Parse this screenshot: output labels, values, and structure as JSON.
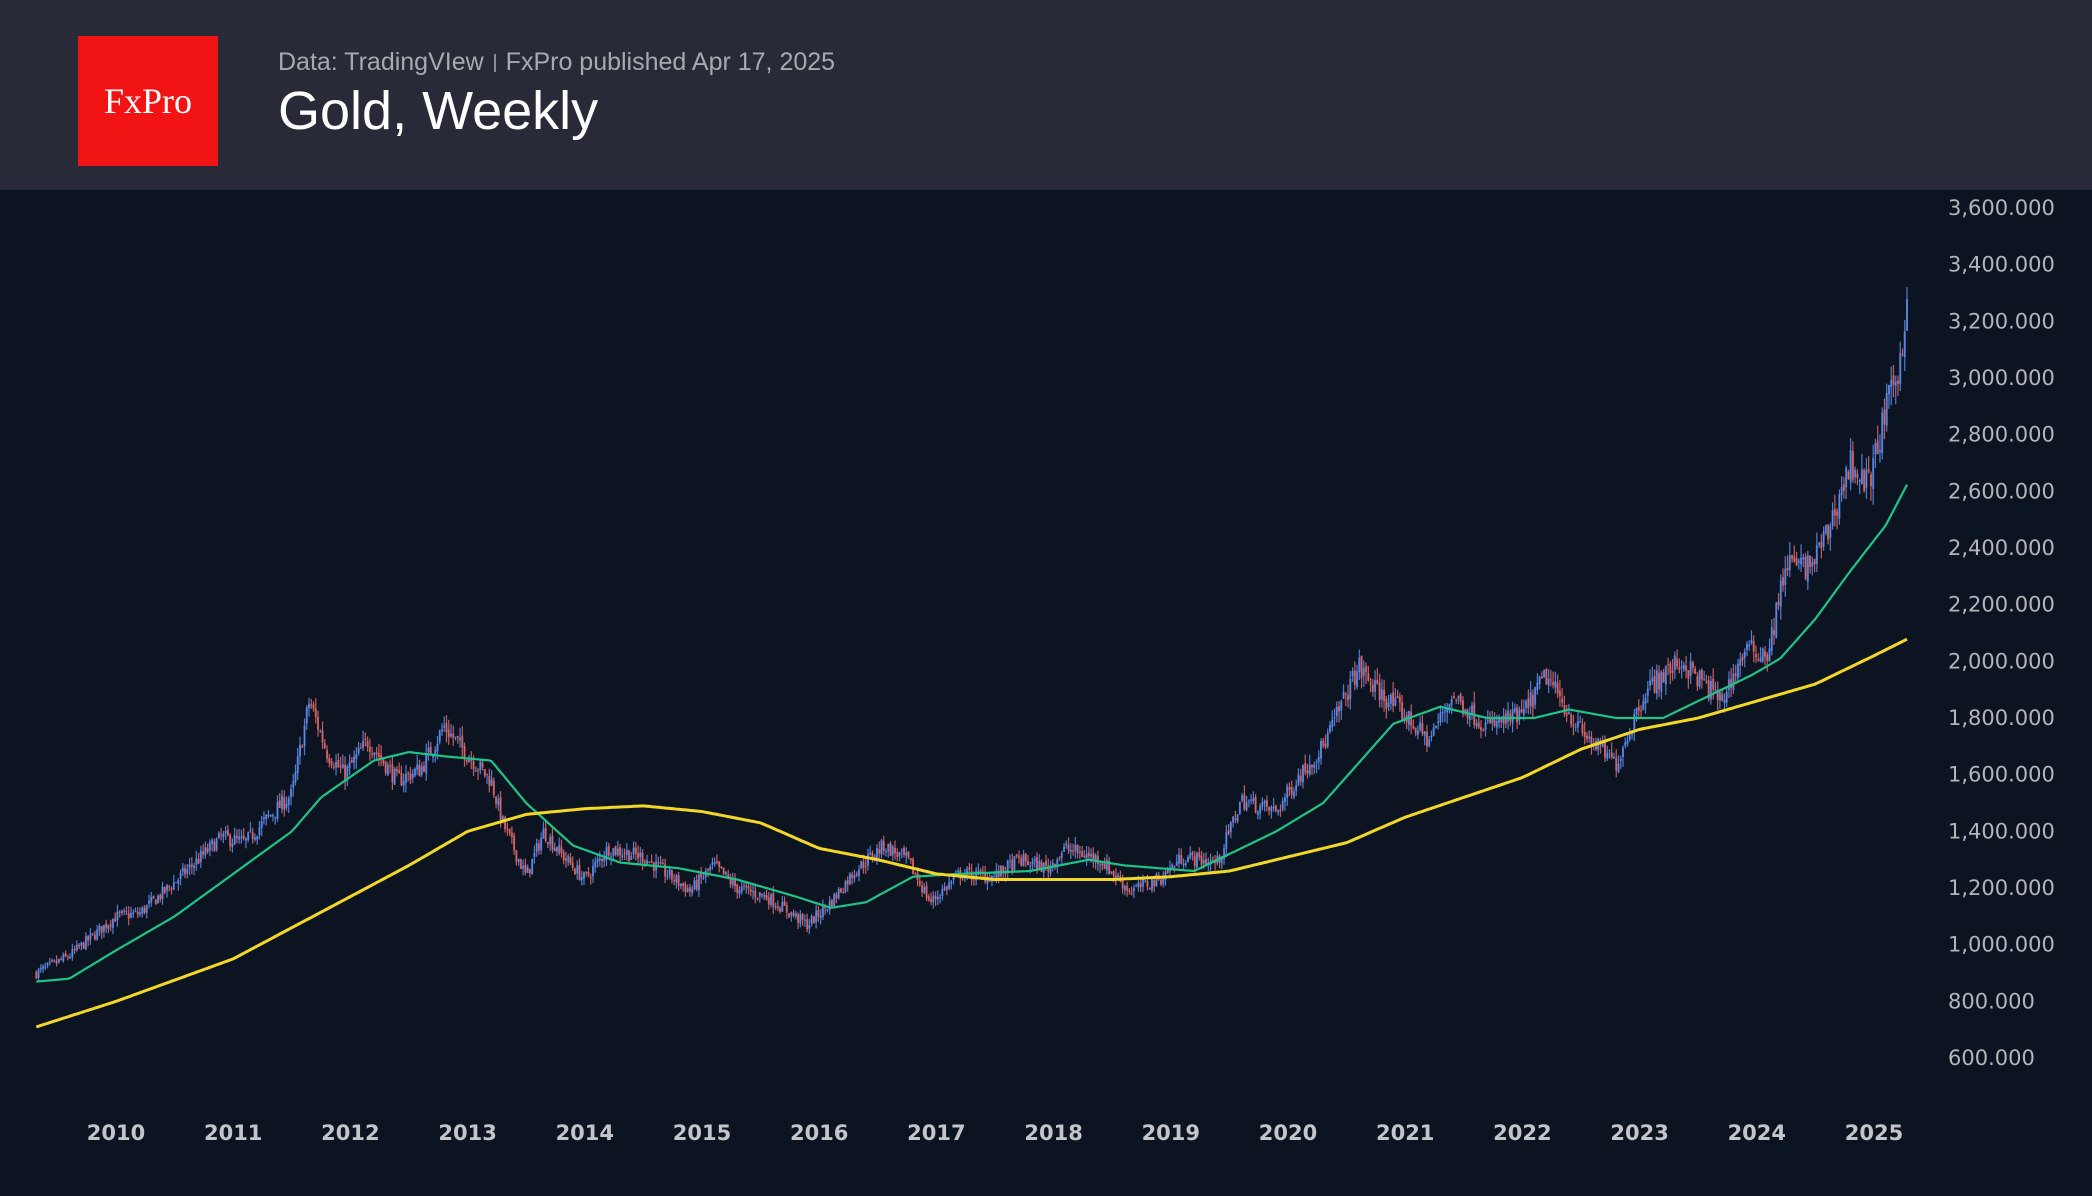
{
  "header": {
    "logo_text": "FxPro",
    "source": "Data: TradingVIew",
    "published": "FxPro published Apr 17, 2025",
    "title": "Gold, Weekly"
  },
  "colors": {
    "up": "#5f8ff0",
    "down": "#e26a6a",
    "ma_fast": "#1ec486",
    "ma_slow": "#f2d728",
    "background": "#0d1421",
    "header": "#282b37",
    "logo": "#f21414"
  },
  "chart_data": {
    "type": "candlestick",
    "title": "Gold, Weekly",
    "ylim": [
      600,
      3600
    ],
    "y_ticks": [
      "3,600.000",
      "3,400.000",
      "3,200.000",
      "3,000.000",
      "2,800.000",
      "2,600.000",
      "2,400.000",
      "2,200.000",
      "2,000.000",
      "1,800.000",
      "1,600.000",
      "1,400.000",
      "1,200.000",
      "1,000.000",
      "800.000",
      "600.000"
    ],
    "y_tick_values": [
      3600,
      3400,
      3200,
      3000,
      2800,
      2600,
      2400,
      2200,
      2000,
      1800,
      1600,
      1400,
      1200,
      1000,
      800,
      600
    ],
    "x_ticks": [
      "2010",
      "2011",
      "2012",
      "2013",
      "2014",
      "2015",
      "2016",
      "2017",
      "2018",
      "2019",
      "2020",
      "2021",
      "2022",
      "2023",
      "2024",
      "2025"
    ],
    "xlim": [
      2009.0,
      2025.9
    ],
    "price_path": [
      [
        2009.32,
        900
      ],
      [
        2009.6,
        960
      ],
      [
        2010.0,
        1100
      ],
      [
        2010.2,
        1110
      ],
      [
        2010.5,
        1220
      ],
      [
        2010.9,
        1380
      ],
      [
        2011.1,
        1360
      ],
      [
        2011.3,
        1450
      ],
      [
        2011.5,
        1530
      ],
      [
        2011.65,
        1860
      ],
      [
        2011.8,
        1680
      ],
      [
        2011.95,
        1600
      ],
      [
        2012.15,
        1720
      ],
      [
        2012.4,
        1580
      ],
      [
        2012.6,
        1620
      ],
      [
        2012.8,
        1770
      ],
      [
        2013.0,
        1670
      ],
      [
        2013.2,
        1580
      ],
      [
        2013.3,
        1430
      ],
      [
        2013.5,
        1240
      ],
      [
        2013.65,
        1400
      ],
      [
        2013.8,
        1320
      ],
      [
        2014.0,
        1230
      ],
      [
        2014.2,
        1340
      ],
      [
        2014.5,
        1310
      ],
      [
        2014.9,
        1190
      ],
      [
        2015.1,
        1280
      ],
      [
        2015.3,
        1200
      ],
      [
        2015.55,
        1170
      ],
      [
        2015.9,
        1070
      ],
      [
        2016.1,
        1150
      ],
      [
        2016.3,
        1260
      ],
      [
        2016.55,
        1350
      ],
      [
        2016.75,
        1300
      ],
      [
        2016.95,
        1150
      ],
      [
        2017.2,
        1250
      ],
      [
        2017.5,
        1240
      ],
      [
        2017.7,
        1300
      ],
      [
        2017.95,
        1270
      ],
      [
        2018.1,
        1340
      ],
      [
        2018.4,
        1300
      ],
      [
        2018.65,
        1190
      ],
      [
        2018.9,
        1230
      ],
      [
        2019.1,
        1310
      ],
      [
        2019.4,
        1290
      ],
      [
        2019.6,
        1510
      ],
      [
        2019.9,
        1470
      ],
      [
        2020.1,
        1600
      ],
      [
        2020.3,
        1700
      ],
      [
        2020.6,
        1980
      ],
      [
        2020.75,
        1900
      ],
      [
        2020.95,
        1830
      ],
      [
        2021.2,
        1720
      ],
      [
        2021.4,
        1880
      ],
      [
        2021.7,
        1770
      ],
      [
        2022.0,
        1810
      ],
      [
        2022.2,
        1950
      ],
      [
        2022.5,
        1750
      ],
      [
        2022.8,
        1640
      ],
      [
        2023.05,
        1900
      ],
      [
        2023.35,
        2000
      ],
      [
        2023.7,
        1860
      ],
      [
        2023.9,
        2040
      ],
      [
        2024.1,
        2030
      ],
      [
        2024.25,
        2350
      ],
      [
        2024.45,
        2330
      ],
      [
        2024.6,
        2450
      ],
      [
        2024.8,
        2700
      ],
      [
        2024.95,
        2620
      ],
      [
        2025.1,
        2880
      ],
      [
        2025.22,
        3050
      ],
      [
        2025.29,
        3330
      ]
    ],
    "series": [
      {
        "name": "MA fast",
        "color": "#1ec486",
        "points": [
          [
            2009.32,
            870
          ],
          [
            2009.6,
            880
          ],
          [
            2010.0,
            980
          ],
          [
            2010.5,
            1100
          ],
          [
            2011.0,
            1250
          ],
          [
            2011.5,
            1400
          ],
          [
            2011.75,
            1520
          ],
          [
            2012.2,
            1650
          ],
          [
            2012.5,
            1680
          ],
          [
            2012.8,
            1665
          ],
          [
            2013.2,
            1650
          ],
          [
            2013.5,
            1500
          ],
          [
            2013.9,
            1350
          ],
          [
            2014.3,
            1290
          ],
          [
            2014.8,
            1270
          ],
          [
            2015.3,
            1230
          ],
          [
            2015.8,
            1170
          ],
          [
            2016.1,
            1130
          ],
          [
            2016.4,
            1150
          ],
          [
            2016.8,
            1240
          ],
          [
            2017.2,
            1250
          ],
          [
            2017.8,
            1260
          ],
          [
            2018.3,
            1300
          ],
          [
            2018.6,
            1280
          ],
          [
            2019.2,
            1260
          ],
          [
            2019.5,
            1320
          ],
          [
            2019.9,
            1400
          ],
          [
            2020.3,
            1500
          ],
          [
            2020.9,
            1780
          ],
          [
            2021.3,
            1840
          ],
          [
            2021.7,
            1800
          ],
          [
            2022.1,
            1800
          ],
          [
            2022.4,
            1830
          ],
          [
            2022.8,
            1800
          ],
          [
            2023.2,
            1800
          ],
          [
            2023.6,
            1880
          ],
          [
            2023.95,
            1950
          ],
          [
            2024.2,
            2010
          ],
          [
            2024.5,
            2150
          ],
          [
            2024.8,
            2320
          ],
          [
            2025.1,
            2480
          ],
          [
            2025.29,
            2630
          ]
        ]
      },
      {
        "name": "MA slow",
        "color": "#f2d728",
        "points": [
          [
            2009.32,
            710
          ],
          [
            2010.0,
            800
          ],
          [
            2011.0,
            950
          ],
          [
            2012.0,
            1170
          ],
          [
            2012.5,
            1280
          ],
          [
            2013.0,
            1400
          ],
          [
            2013.5,
            1460
          ],
          [
            2014.0,
            1480
          ],
          [
            2014.5,
            1490
          ],
          [
            2015.0,
            1470
          ],
          [
            2015.5,
            1430
          ],
          [
            2016.0,
            1340
          ],
          [
            2016.5,
            1300
          ],
          [
            2017.0,
            1250
          ],
          [
            2017.5,
            1230
          ],
          [
            2018.0,
            1230
          ],
          [
            2018.5,
            1230
          ],
          [
            2019.0,
            1240
          ],
          [
            2019.5,
            1260
          ],
          [
            2020.0,
            1310
          ],
          [
            2020.5,
            1360
          ],
          [
            2021.0,
            1450
          ],
          [
            2021.5,
            1520
          ],
          [
            2022.0,
            1590
          ],
          [
            2022.5,
            1690
          ],
          [
            2023.0,
            1760
          ],
          [
            2023.5,
            1800
          ],
          [
            2024.0,
            1860
          ],
          [
            2024.5,
            1920
          ],
          [
            2025.0,
            2020
          ],
          [
            2025.29,
            2080
          ]
        ]
      }
    ]
  }
}
